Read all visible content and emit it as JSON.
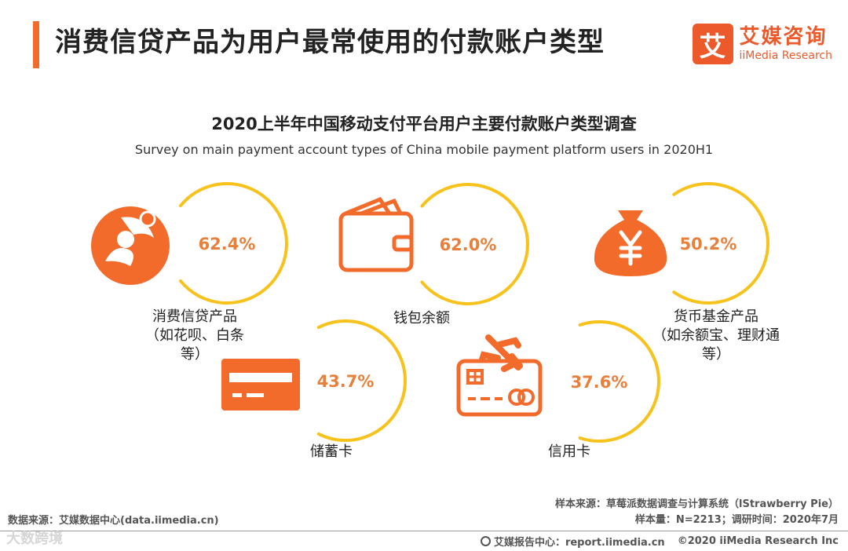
{
  "header": {
    "title": "消费信贷产品为用户最常使用的付款账户类型",
    "logo_mark": "艾",
    "logo_cn": "艾媒咨询",
    "logo_en": "iiMedia Research"
  },
  "chart_data": {
    "type": "bar",
    "title": "2020上半年中国移动支付平台用户主要付款账户类型调查",
    "subtitle": "Survey on main payment account types of China mobile payment platform users in 2020H1",
    "unit": "%",
    "categories": [
      "消费信贷产品（如花呗、白条等）",
      "钱包余额",
      "货币基金产品（如余额宝、理财通等）",
      "储蓄卡",
      "信用卡"
    ],
    "values": [
      62.4,
      62.0,
      50.2,
      43.7,
      37.6
    ],
    "value_labels": [
      "62.4%",
      "62.0%",
      "50.2%",
      "43.7%",
      "37.6%"
    ],
    "label_lines": [
      [
        "消费信贷产品",
        "（如花呗、白条",
        "等）"
      ],
      [
        "钱包余额"
      ],
      [
        "货币基金产品",
        "（如余额宝、理财通",
        "等）"
      ],
      [
        "储蓄卡"
      ],
      [
        "信用卡"
      ]
    ],
    "icons": [
      "consumer-credit-icon",
      "wallet-icon",
      "money-bag-icon",
      "debit-card-icon",
      "credit-card-icon"
    ]
  },
  "colors": {
    "accent": "#f26b2b",
    "ring": "#f7c21b",
    "value_text": "#e8803b",
    "text": "#222222"
  },
  "footer": {
    "source": "数据来源：艾媒数据中心(data.iimedia.cn)",
    "sample_source": "样本来源：草莓派数据调查与计算系统（lStrawberry Pie）",
    "sample_info": "样本量：N=2213；调研时间：2020年7月",
    "report_center": "艾媒报告中心：report.iimedia.cn",
    "copyright": "©2020  iiMedia Research  Inc",
    "watermark": "大数跨境"
  }
}
